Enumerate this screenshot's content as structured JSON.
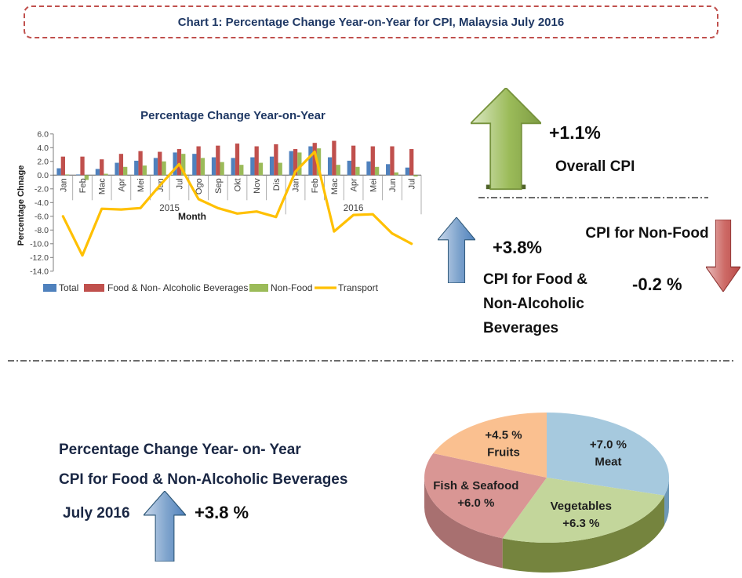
{
  "title_box": {
    "text": "Chart 1: Percentage Change Year-on-Year for CPI, Malaysia July 2016"
  },
  "chart_data": [
    {
      "type": "bar+line",
      "title": "Percentage Change Year-on-Year",
      "ylabel": "Percentage Chnage",
      "xlabel": "Month",
      "ylim": [
        -14.0,
        6.0
      ],
      "ytick_step": 2.0,
      "grid": false,
      "legend_position": "bottom",
      "categories": [
        "Jan",
        "Feb",
        "Mac",
        "Apr",
        "Mei",
        "Jun",
        "Jul",
        "Ogo",
        "Sep",
        "Okt",
        "Nov",
        "Dis",
        "Jan",
        "Feb",
        "Mac",
        "Apr",
        "Mei",
        "Jun",
        "Jul"
      ],
      "year_groups": [
        {
          "label": "2015",
          "months": 12
        },
        {
          "label": "2016",
          "months": 7
        }
      ],
      "series": [
        {
          "name": "Total",
          "type": "bar",
          "color": "#4F81BD",
          "values": [
            1.0,
            0.1,
            0.9,
            1.8,
            2.1,
            2.5,
            3.3,
            3.1,
            2.6,
            2.5,
            2.6,
            2.7,
            3.5,
            4.2,
            2.6,
            2.1,
            2.0,
            1.6,
            1.1
          ]
        },
        {
          "name": "Food & Non- Alcoholic Beverages",
          "type": "bar",
          "color": "#C0504D",
          "values": [
            2.7,
            2.7,
            2.3,
            3.1,
            3.5,
            3.4,
            3.8,
            4.2,
            4.3,
            4.6,
            4.2,
            4.5,
            3.8,
            4.7,
            5.0,
            4.3,
            4.2,
            4.2,
            3.8
          ]
        },
        {
          "name": "Non-Food",
          "type": "bar",
          "color": "#9BBB59",
          "values": [
            0.1,
            -0.7,
            0.2,
            1.2,
            1.4,
            2.0,
            3.1,
            2.5,
            1.9,
            1.5,
            1.8,
            1.8,
            3.3,
            3.9,
            1.5,
            1.2,
            1.2,
            0.4,
            -0.2
          ]
        },
        {
          "name": "Transport",
          "type": "line",
          "color": "#FFC000",
          "values": [
            -6.0,
            -11.7,
            -4.9,
            -5.0,
            -4.8,
            -1.5,
            1.6,
            -3.5,
            -4.8,
            -5.6,
            -5.3,
            -6.1,
            0.5,
            3.4,
            -8.2,
            -5.8,
            -5.7,
            -8.5,
            -10.0
          ]
        }
      ]
    },
    {
      "type": "pie",
      "effect": "3d",
      "start_angle_deg": 0,
      "slices": [
        {
          "name": "Meat",
          "value": 7.0,
          "display": "+7.0 %",
          "color": "#A6C9DE",
          "side_color": "#6E99B8",
          "label_lines": [
            "+7.0 %",
            "Meat"
          ]
        },
        {
          "name": "Vegetables",
          "value": 6.3,
          "display": "+6.3 %",
          "color": "#C3D69B",
          "side_color": "#75843E",
          "label_lines": [
            "Vegetables",
            "+6.3 %"
          ]
        },
        {
          "name": "Fish & Seafood",
          "value": 6.0,
          "display": "+6.0 %",
          "color": "#D99694",
          "side_color": "#A87070",
          "label_lines": [
            "Fish & Seafood",
            "+6.0 %"
          ]
        },
        {
          "name": "Fruits",
          "value": 4.5,
          "display": "+4.5 %",
          "color": "#FAC090",
          "side_color": "#C98F60",
          "label_lines": [
            "+4.5 %",
            "Fruits"
          ]
        }
      ]
    }
  ],
  "indicators": {
    "overall": {
      "value": "+1.1%",
      "label": "Overall CPI",
      "direction": "up",
      "arrow_color": "#9BBB59"
    },
    "food": {
      "value": "+3.8%",
      "label": "CPI for Food &\nNon-Alcoholic\nBeverages",
      "direction": "up",
      "arrow_color": "#4F81BD"
    },
    "nonfood": {
      "value": "-0.2 %",
      "label": "CPI for\nNon-Food",
      "direction": "down",
      "arrow_color": "#C0504D"
    }
  },
  "bottom_section": {
    "line1": "Percentage Change Year- on- Year",
    "line2": "CPI for Food & Non-Alcoholic Beverages",
    "date": "July 2016",
    "value": "+3.8 %",
    "direction": "up",
    "arrow_color": "#4F81BD"
  }
}
